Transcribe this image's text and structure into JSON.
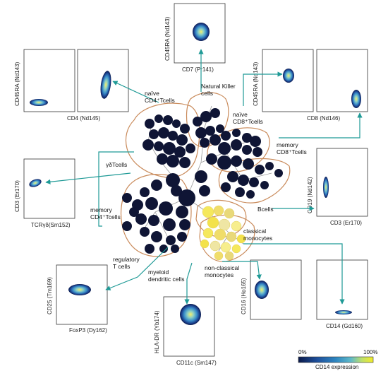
{
  "colors": {
    "node": "#0f1535",
    "edge": "#9a9a9a",
    "outline": "#c98a5a",
    "arrow": "#1f9a96",
    "gradient": [
      "#0b1a4a",
      "#1e4f9b",
      "#2e86c0",
      "#5fb9c9",
      "#bfe06a",
      "#f2ec2a"
    ]
  },
  "populations": {
    "nk": "Natural Killer\ncells",
    "naive_cd4": "naïve\nCD4⁺Tcells",
    "naive_cd8": "naïve\nCD8⁺Tcells",
    "gd": "γδTcells",
    "memory_cd8": "memory\nCD8⁺Tcells",
    "memory_cd4": "memory\nCD4⁺Tcells",
    "bcells": "Bcells",
    "classical": "classical\nmonocytes",
    "nonclassical": "non-classical\nmonocytes",
    "treg": "regulatory\nT cells",
    "mdc": "myeloid\ndendritic cells"
  },
  "plots": {
    "cd4": {
      "x": "CD4 (Nd145)",
      "y": "CD45RA (Nd143)"
    },
    "cd7": {
      "x": "CD7 (Pr141)",
      "y": "CD45RA (Nd143)"
    },
    "cd8": {
      "x": "CD8 (Nd146)",
      "y": "CD45RA (Nd143)"
    },
    "tcrgd": {
      "x": "TCRγδ(Sm152)",
      "y": "CD3 (Er170)"
    },
    "cd19": {
      "x": "CD3 (Er170)",
      "y": "CD19 (Nd142)"
    },
    "foxp3": {
      "x": "FoxP3 (Dy162)",
      "y": "CD25 (Tm169)"
    },
    "cd11c": {
      "x": "CD11c (Sm147)",
      "y": "HLA-DR (Yb174)"
    },
    "cd14": {
      "x": "CD14 (Gd160)",
      "y": "CD16 (Ho165)"
    }
  },
  "legend": {
    "min": "0%",
    "max": "100%",
    "title": "CD14 expression"
  }
}
